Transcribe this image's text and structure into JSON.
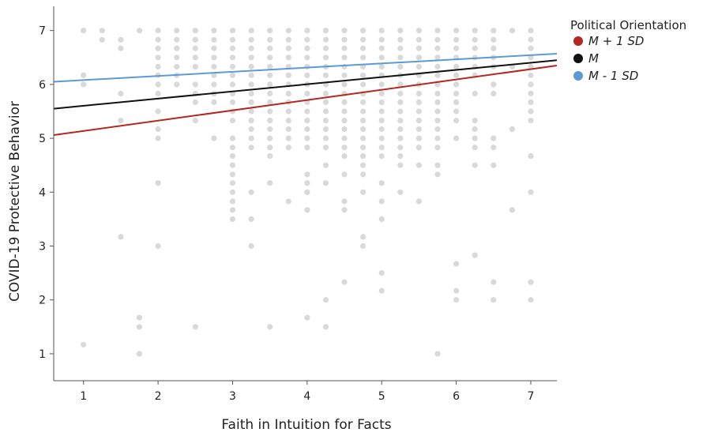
{
  "chart_data": {
    "type": "scatter",
    "title": "",
    "xlabel": "Faith in Intuition for Facts",
    "ylabel": "COVID-19 Protective Behavior",
    "xlim": [
      0.6,
      7.35
    ],
    "ylim": [
      0.5,
      7.45
    ],
    "xticks": [
      "1",
      "2",
      "3",
      "4",
      "5",
      "6",
      "7"
    ],
    "yticks": [
      "1",
      "2",
      "3",
      "4",
      "5",
      "6",
      "7"
    ],
    "grid": false,
    "legend": {
      "title": "Political Orientation",
      "placement": "top-right",
      "entries": [
        "M + 1 SD",
        "M",
        "M - 1 SD"
      ]
    },
    "points": [
      [
        1,
        7
      ],
      [
        1,
        6.17
      ],
      [
        1,
        6.0
      ],
      [
        1,
        1.17
      ],
      [
        1.25,
        7
      ],
      [
        1.25,
        6.83
      ],
      [
        1.5,
        6.83
      ],
      [
        1.5,
        6.67
      ],
      [
        1.5,
        5.83
      ],
      [
        1.5,
        5.33
      ],
      [
        1.5,
        3.17
      ],
      [
        1.75,
        7
      ],
      [
        1.75,
        1.67
      ],
      [
        1.75,
        1.5
      ],
      [
        1.75,
        1.0
      ],
      [
        2,
        7
      ],
      [
        2,
        6.83
      ],
      [
        2,
        6.67
      ],
      [
        2,
        6.5
      ],
      [
        2,
        6.33
      ],
      [
        2,
        6.17
      ],
      [
        2,
        6.0
      ],
      [
        2,
        5.83
      ],
      [
        2,
        5.5
      ],
      [
        2,
        5.17
      ],
      [
        2,
        5.0
      ],
      [
        2,
        4.17
      ],
      [
        2,
        3.0
      ],
      [
        2.25,
        7
      ],
      [
        2.25,
        6.83
      ],
      [
        2.25,
        6.67
      ],
      [
        2.25,
        6.5
      ],
      [
        2.25,
        6.33
      ],
      [
        2.25,
        6.17
      ],
      [
        2.25,
        6.0
      ],
      [
        2.5,
        7
      ],
      [
        2.5,
        6.83
      ],
      [
        2.5,
        6.67
      ],
      [
        2.5,
        6.5
      ],
      [
        2.5,
        6.33
      ],
      [
        2.5,
        6.0
      ],
      [
        2.5,
        5.83
      ],
      [
        2.5,
        5.67
      ],
      [
        2.5,
        5.33
      ],
      [
        2.5,
        1.5
      ],
      [
        2.75,
        7
      ],
      [
        2.75,
        6.83
      ],
      [
        2.75,
        6.67
      ],
      [
        2.75,
        6.5
      ],
      [
        2.75,
        6.33
      ],
      [
        2.75,
        6.17
      ],
      [
        2.75,
        6.0
      ],
      [
        2.75,
        5.83
      ],
      [
        2.75,
        5.67
      ],
      [
        2.75,
        5.0
      ],
      [
        3,
        7
      ],
      [
        3,
        6.83
      ],
      [
        3,
        6.67
      ],
      [
        3,
        6.5
      ],
      [
        3,
        6.33
      ],
      [
        3,
        6.17
      ],
      [
        3,
        6.0
      ],
      [
        3,
        5.83
      ],
      [
        3,
        5.67
      ],
      [
        3,
        5.5
      ],
      [
        3,
        5.33
      ],
      [
        3,
        5.0
      ],
      [
        3,
        4.83
      ],
      [
        3,
        4.67
      ],
      [
        3,
        4.5
      ],
      [
        3,
        4.33
      ],
      [
        3,
        4.17
      ],
      [
        3,
        4.0
      ],
      [
        3,
        3.83
      ],
      [
        3,
        3.67
      ],
      [
        3,
        3.5
      ],
      [
        3.25,
        7
      ],
      [
        3.25,
        6.83
      ],
      [
        3.25,
        6.67
      ],
      [
        3.25,
        6.5
      ],
      [
        3.25,
        6.33
      ],
      [
        3.25,
        6.17
      ],
      [
        3.25,
        6.0
      ],
      [
        3.25,
        5.83
      ],
      [
        3.25,
        5.67
      ],
      [
        3.25,
        5.5
      ],
      [
        3.25,
        5.33
      ],
      [
        3.25,
        5.17
      ],
      [
        3.25,
        5.0
      ],
      [
        3.25,
        4.83
      ],
      [
        3.25,
        4.0
      ],
      [
        3.25,
        3.5
      ],
      [
        3.25,
        3.0
      ],
      [
        3.5,
        7
      ],
      [
        3.5,
        6.83
      ],
      [
        3.5,
        6.67
      ],
      [
        3.5,
        6.5
      ],
      [
        3.5,
        6.33
      ],
      [
        3.5,
        6.17
      ],
      [
        3.5,
        6.0
      ],
      [
        3.5,
        5.83
      ],
      [
        3.5,
        5.67
      ],
      [
        3.5,
        5.5
      ],
      [
        3.5,
        5.33
      ],
      [
        3.5,
        5.17
      ],
      [
        3.5,
        5.0
      ],
      [
        3.5,
        4.83
      ],
      [
        3.5,
        4.67
      ],
      [
        3.5,
        4.17
      ],
      [
        3.5,
        1.5
      ],
      [
        3.75,
        7
      ],
      [
        3.75,
        6.83
      ],
      [
        3.75,
        6.67
      ],
      [
        3.75,
        6.5
      ],
      [
        3.75,
        6.33
      ],
      [
        3.75,
        6.17
      ],
      [
        3.75,
        6.0
      ],
      [
        3.75,
        5.83
      ],
      [
        3.75,
        5.67
      ],
      [
        3.75,
        5.5
      ],
      [
        3.75,
        5.33
      ],
      [
        3.75,
        5.17
      ],
      [
        3.75,
        5.0
      ],
      [
        3.75,
        4.83
      ],
      [
        3.75,
        3.83
      ],
      [
        4,
        7
      ],
      [
        4,
        6.83
      ],
      [
        4,
        6.67
      ],
      [
        4,
        6.5
      ],
      [
        4,
        6.33
      ],
      [
        4,
        6.17
      ],
      [
        4,
        6.0
      ],
      [
        4,
        5.83
      ],
      [
        4,
        5.67
      ],
      [
        4,
        5.5
      ],
      [
        4,
        5.33
      ],
      [
        4,
        5.17
      ],
      [
        4,
        5.0
      ],
      [
        4,
        4.83
      ],
      [
        4,
        4.33
      ],
      [
        4,
        4.17
      ],
      [
        4,
        4.0
      ],
      [
        4,
        3.67
      ],
      [
        4,
        1.67
      ],
      [
        4.25,
        7
      ],
      [
        4.25,
        6.83
      ],
      [
        4.25,
        6.67
      ],
      [
        4.25,
        6.5
      ],
      [
        4.25,
        6.33
      ],
      [
        4.25,
        6.17
      ],
      [
        4.25,
        6.0
      ],
      [
        4.25,
        5.83
      ],
      [
        4.25,
        5.67
      ],
      [
        4.25,
        5.5
      ],
      [
        4.25,
        5.33
      ],
      [
        4.25,
        5.17
      ],
      [
        4.25,
        5.0
      ],
      [
        4.25,
        4.83
      ],
      [
        4.25,
        4.5
      ],
      [
        4.25,
        4.17
      ],
      [
        4.25,
        2.0
      ],
      [
        4.25,
        1.5
      ],
      [
        4.5,
        7
      ],
      [
        4.5,
        6.83
      ],
      [
        4.5,
        6.67
      ],
      [
        4.5,
        6.5
      ],
      [
        4.5,
        6.33
      ],
      [
        4.5,
        6.17
      ],
      [
        4.5,
        6.0
      ],
      [
        4.5,
        5.83
      ],
      [
        4.5,
        5.67
      ],
      [
        4.5,
        5.5
      ],
      [
        4.5,
        5.33
      ],
      [
        4.5,
        5.17
      ],
      [
        4.5,
        5.0
      ],
      [
        4.5,
        4.83
      ],
      [
        4.5,
        4.67
      ],
      [
        4.5,
        4.33
      ],
      [
        4.5,
        3.83
      ],
      [
        4.5,
        3.67
      ],
      [
        4.5,
        2.33
      ],
      [
        4.75,
        7
      ],
      [
        4.75,
        6.83
      ],
      [
        4.75,
        6.67
      ],
      [
        4.75,
        6.5
      ],
      [
        4.75,
        6.33
      ],
      [
        4.75,
        6.17
      ],
      [
        4.75,
        6.0
      ],
      [
        4.75,
        5.83
      ],
      [
        4.75,
        5.67
      ],
      [
        4.75,
        5.5
      ],
      [
        4.75,
        5.33
      ],
      [
        4.75,
        5.17
      ],
      [
        4.75,
        5.0
      ],
      [
        4.75,
        4.83
      ],
      [
        4.75,
        4.67
      ],
      [
        4.75,
        4.5
      ],
      [
        4.75,
        4.33
      ],
      [
        4.75,
        4.0
      ],
      [
        4.75,
        3.17
      ],
      [
        4.75,
        3.0
      ],
      [
        5,
        7
      ],
      [
        5,
        6.83
      ],
      [
        5,
        6.67
      ],
      [
        5,
        6.5
      ],
      [
        5,
        6.33
      ],
      [
        5,
        6.17
      ],
      [
        5,
        6.0
      ],
      [
        5,
        5.83
      ],
      [
        5,
        5.67
      ],
      [
        5,
        5.5
      ],
      [
        5,
        5.33
      ],
      [
        5,
        5.17
      ],
      [
        5,
        5.0
      ],
      [
        5,
        4.83
      ],
      [
        5,
        4.67
      ],
      [
        5,
        4.17
      ],
      [
        5,
        3.83
      ],
      [
        5,
        3.5
      ],
      [
        5,
        2.5
      ],
      [
        5,
        2.17
      ],
      [
        5.25,
        7
      ],
      [
        5.25,
        6.83
      ],
      [
        5.25,
        6.67
      ],
      [
        5.25,
        6.5
      ],
      [
        5.25,
        6.33
      ],
      [
        5.25,
        6.17
      ],
      [
        5.25,
        6.0
      ],
      [
        5.25,
        5.83
      ],
      [
        5.25,
        5.67
      ],
      [
        5.25,
        5.5
      ],
      [
        5.25,
        5.33
      ],
      [
        5.25,
        5.17
      ],
      [
        5.25,
        5.0
      ],
      [
        5.25,
        4.83
      ],
      [
        5.25,
        4.67
      ],
      [
        5.25,
        4.5
      ],
      [
        5.25,
        4.0
      ],
      [
        5.5,
        7
      ],
      [
        5.5,
        6.83
      ],
      [
        5.5,
        6.67
      ],
      [
        5.5,
        6.5
      ],
      [
        5.5,
        6.33
      ],
      [
        5.5,
        6.17
      ],
      [
        5.5,
        6.0
      ],
      [
        5.5,
        5.83
      ],
      [
        5.5,
        5.67
      ],
      [
        5.5,
        5.5
      ],
      [
        5.5,
        5.33
      ],
      [
        5.5,
        5.17
      ],
      [
        5.5,
        5.0
      ],
      [
        5.5,
        4.83
      ],
      [
        5.5,
        4.5
      ],
      [
        5.5,
        3.83
      ],
      [
        5.75,
        7
      ],
      [
        5.75,
        6.83
      ],
      [
        5.75,
        6.67
      ],
      [
        5.75,
        6.5
      ],
      [
        5.75,
        6.33
      ],
      [
        5.75,
        6.17
      ],
      [
        5.75,
        6.0
      ],
      [
        5.75,
        5.83
      ],
      [
        5.75,
        5.67
      ],
      [
        5.75,
        5.5
      ],
      [
        5.75,
        5.33
      ],
      [
        5.75,
        5.17
      ],
      [
        5.75,
        5.0
      ],
      [
        5.75,
        4.83
      ],
      [
        5.75,
        4.5
      ],
      [
        5.75,
        4.33
      ],
      [
        5.75,
        1.0
      ],
      [
        6,
        7
      ],
      [
        6,
        6.83
      ],
      [
        6,
        6.67
      ],
      [
        6,
        6.5
      ],
      [
        6,
        6.33
      ],
      [
        6,
        6.17
      ],
      [
        6,
        6.0
      ],
      [
        6,
        5.83
      ],
      [
        6,
        5.67
      ],
      [
        6,
        5.5
      ],
      [
        6,
        5.33
      ],
      [
        6,
        5.0
      ],
      [
        6,
        2.67
      ],
      [
        6,
        2.17
      ],
      [
        6,
        2.0
      ],
      [
        6.25,
        7
      ],
      [
        6.25,
        6.83
      ],
      [
        6.25,
        6.67
      ],
      [
        6.25,
        6.5
      ],
      [
        6.25,
        6.33
      ],
      [
        6.25,
        6.17
      ],
      [
        6.25,
        5.83
      ],
      [
        6.25,
        5.33
      ],
      [
        6.25,
        5.17
      ],
      [
        6.25,
        5.0
      ],
      [
        6.25,
        4.83
      ],
      [
        6.25,
        4.5
      ],
      [
        6.25,
        2.83
      ],
      [
        6.5,
        7
      ],
      [
        6.5,
        6.83
      ],
      [
        6.5,
        6.67
      ],
      [
        6.5,
        6.5
      ],
      [
        6.5,
        6.33
      ],
      [
        6.5,
        6.0
      ],
      [
        6.5,
        5.83
      ],
      [
        6.5,
        5.0
      ],
      [
        6.5,
        4.83
      ],
      [
        6.5,
        4.5
      ],
      [
        6.5,
        2.33
      ],
      [
        6.5,
        2.0
      ],
      [
        6.75,
        7
      ],
      [
        6.75,
        6.33
      ],
      [
        6.75,
        5.17
      ],
      [
        6.75,
        3.67
      ],
      [
        7,
        7
      ],
      [
        7,
        6.83
      ],
      [
        7,
        6.67
      ],
      [
        7,
        6.5
      ],
      [
        7,
        6.33
      ],
      [
        7,
        6.17
      ],
      [
        7,
        6.0
      ],
      [
        7,
        5.83
      ],
      [
        7,
        5.67
      ],
      [
        7,
        5.5
      ],
      [
        7,
        5.33
      ],
      [
        7,
        4.67
      ],
      [
        7,
        4.0
      ],
      [
        7,
        2.33
      ],
      [
        7,
        2.0
      ]
    ],
    "series": [
      {
        "name": "M + 1 SD",
        "color": "#b5271f",
        "x": [
          0.6,
          7.35
        ],
        "y": [
          5.06,
          6.35
        ]
      },
      {
        "name": "M",
        "color": "#111111",
        "x": [
          0.6,
          7.35
        ],
        "y": [
          5.55,
          6.45
        ]
      },
      {
        "name": "M - 1 SD",
        "color": "#5b9bd5",
        "x": [
          0.6,
          7.35
        ],
        "y": [
          6.05,
          6.57
        ]
      }
    ],
    "point_color": "#d9d9d9"
  }
}
